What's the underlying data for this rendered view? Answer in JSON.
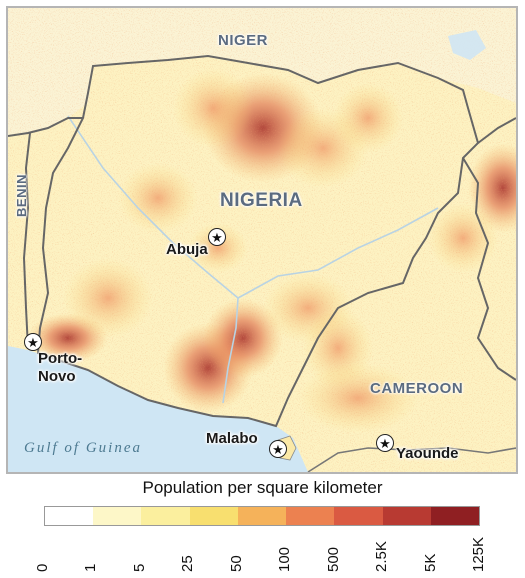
{
  "map": {
    "countries": [
      "NIGER",
      "NIGERIA",
      "BENIN",
      "CAMEROON"
    ],
    "cities": [
      "Abuja",
      "Porto-",
      "Novo",
      "Malabo",
      "Yaounde"
    ],
    "sea": "Gulf of Guinea",
    "capital_icon": "star-icon"
  },
  "legend": {
    "title": "Population per square kilometer",
    "ticks": [
      "0",
      "1",
      "5",
      "25",
      "50",
      "100",
      "500",
      "2.5K",
      "5K",
      "125K"
    ],
    "colors": [
      "#ffffff",
      "#fdf7c8",
      "#fbef9e",
      "#f8df6f",
      "#f5b25a",
      "#ec8150",
      "#da5a42",
      "#b83a32",
      "#8f1f22"
    ]
  },
  "colors": {
    "water": "#cfe6f4",
    "land_base": "#fdf2c2",
    "border": "#666666",
    "frame": "#b5b5b5"
  }
}
